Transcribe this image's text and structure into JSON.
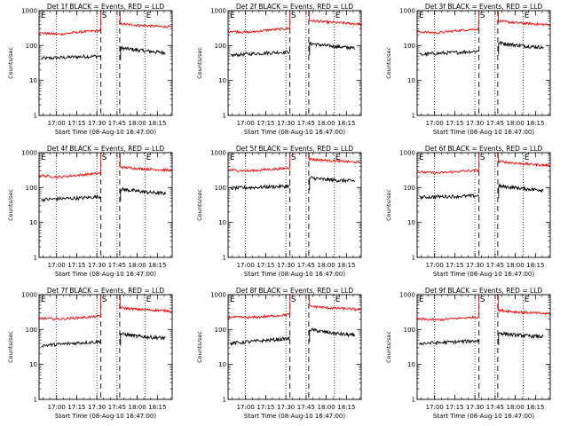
{
  "chart_data": {
    "type": "line",
    "common": {
      "ylabel": "Counts/sec",
      "xlabel": "Start Time (08-Aug-10 16:47:00)",
      "yscale": "log",
      "ylim": [
        1,
        1000
      ],
      "xlim": [
        "16:47",
        "18:26"
      ],
      "x_tick_labels": [
        "17:00",
        "17:15",
        "17:30",
        "17:45",
        "18:00",
        "18:15"
      ],
      "y_tick_labels": [
        "1",
        "10",
        "100",
        "1000"
      ],
      "colors": {
        "events": "#000000",
        "lld": "#ff0000",
        "axes": "#000000"
      },
      "marker_labels": {
        "start": "S",
        "end": "E"
      },
      "markers": {
        "dotted": [
          "17:00",
          "17:30",
          "17:45",
          "18:06"
        ],
        "dashed": [
          "17:33",
          "17:47"
        ]
      },
      "gap": [
        "17:33",
        "17:47"
      ]
    },
    "panels": [
      {
        "title": "Det 1f BLACK = Events, RED = LLD",
        "series": [
          {
            "name": "BLACK = Events",
            "color": "#000000",
            "pre": [
              43,
              45,
              48,
              50
            ],
            "post": [
              85,
              75,
              68,
              62
            ]
          },
          {
            "name": "RED = LLD",
            "color": "#ff0000",
            "pre": [
              230,
              210,
              245,
              270
            ],
            "post": [
              420,
              380,
              360,
              340
            ]
          }
        ]
      },
      {
        "title": "Det 2f BLACK = Events, RED = LLD",
        "series": [
          {
            "name": "BLACK = Events",
            "color": "#000000",
            "pre": [
              52,
              58,
              62,
              66
            ],
            "post": [
              115,
              100,
              92,
              85
            ]
          },
          {
            "name": "RED = LLD",
            "color": "#ff0000",
            "pre": [
              260,
              240,
              280,
              310
            ],
            "post": [
              520,
              470,
              440,
              410
            ]
          }
        ]
      },
      {
        "title": "Det 3f BLACK = Events, RED = LLD",
        "series": [
          {
            "name": "BLACK = Events",
            "color": "#000000",
            "pre": [
              55,
              60,
              64,
              70
            ],
            "post": [
              120,
              105,
              95,
              88
            ]
          },
          {
            "name": "RED = LLD",
            "color": "#ff0000",
            "pre": [
              250,
              230,
              270,
              300
            ],
            "post": [
              500,
              450,
              420,
              390
            ]
          }
        ]
      },
      {
        "title": "Det 4f BLACK = Events, RED = LLD",
        "series": [
          {
            "name": "BLACK = Events",
            "color": "#000000",
            "pre": [
              45,
              48,
              50,
              55
            ],
            "post": [
              90,
              80,
              72,
              68
            ]
          },
          {
            "name": "RED = LLD",
            "color": "#ff0000",
            "pre": [
              220,
              200,
              230,
              260
            ],
            "post": [
              390,
              350,
              330,
              310
            ]
          }
        ]
      },
      {
        "title": "Det 5f BLACK = Events, RED = LLD",
        "series": [
          {
            "name": "BLACK = Events",
            "color": "#000000",
            "pre": [
              95,
              100,
              105,
              110
            ],
            "post": [
              190,
              170,
              160,
              155
            ]
          },
          {
            "name": "RED = LLD",
            "color": "#ff0000",
            "pre": [
              320,
              300,
              330,
              360
            ],
            "post": [
              650,
              600,
              560,
              520
            ]
          }
        ]
      },
      {
        "title": "Det 6f BLACK = Events, RED = LLD",
        "series": [
          {
            "name": "BLACK = Events",
            "color": "#000000",
            "pre": [
              52,
              55,
              56,
              58
            ],
            "post": [
              110,
              100,
              90,
              85
            ]
          },
          {
            "name": "RED = LLD",
            "color": "#ff0000",
            "pre": [
              280,
              260,
              290,
              310
            ],
            "post": [
              560,
              500,
              460,
              430
            ]
          }
        ]
      },
      {
        "title": "Det 7f BLACK = Events, RED = LLD",
        "series": [
          {
            "name": "BLACK = Events",
            "color": "#000000",
            "pre": [
              35,
              38,
              42,
              45
            ],
            "post": [
              75,
              65,
              60,
              57
            ]
          },
          {
            "name": "RED = LLD",
            "color": "#ff0000",
            "pre": [
              210,
              200,
              220,
              240
            ],
            "post": [
              420,
              380,
              360,
              340
            ]
          }
        ]
      },
      {
        "title": "Det 8f BLACK = Events, RED = LLD",
        "series": [
          {
            "name": "BLACK = Events",
            "color": "#000000",
            "pre": [
              40,
              45,
              50,
              55
            ],
            "post": [
              100,
              85,
              75,
              68
            ]
          },
          {
            "name": "RED = LLD",
            "color": "#ff0000",
            "pre": [
              230,
              220,
              240,
              270
            ],
            "post": [
              470,
              420,
              400,
              370
            ]
          }
        ]
      },
      {
        "title": "Det 9f BLACK = Events, RED = LLD",
        "series": [
          {
            "name": "BLACK = Events",
            "color": "#000000",
            "pre": [
              40,
              42,
              45,
              48
            ],
            "post": [
              80,
              70,
              66,
              62
            ]
          },
          {
            "name": "RED = LLD",
            "color": "#ff0000",
            "pre": [
              200,
              190,
              210,
              230
            ],
            "post": [
              360,
              320,
              300,
              280
            ]
          }
        ]
      }
    ]
  }
}
